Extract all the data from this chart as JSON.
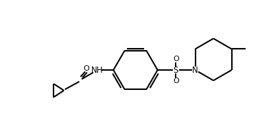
{
  "bg_color": "#ffffff",
  "line_color": "#000000",
  "line_width": 1.5,
  "fig_width": 3.95,
  "fig_height": 2.04,
  "dpi": 100,
  "xlim": [
    0,
    10
  ],
  "ylim": [
    0,
    5.2
  ]
}
